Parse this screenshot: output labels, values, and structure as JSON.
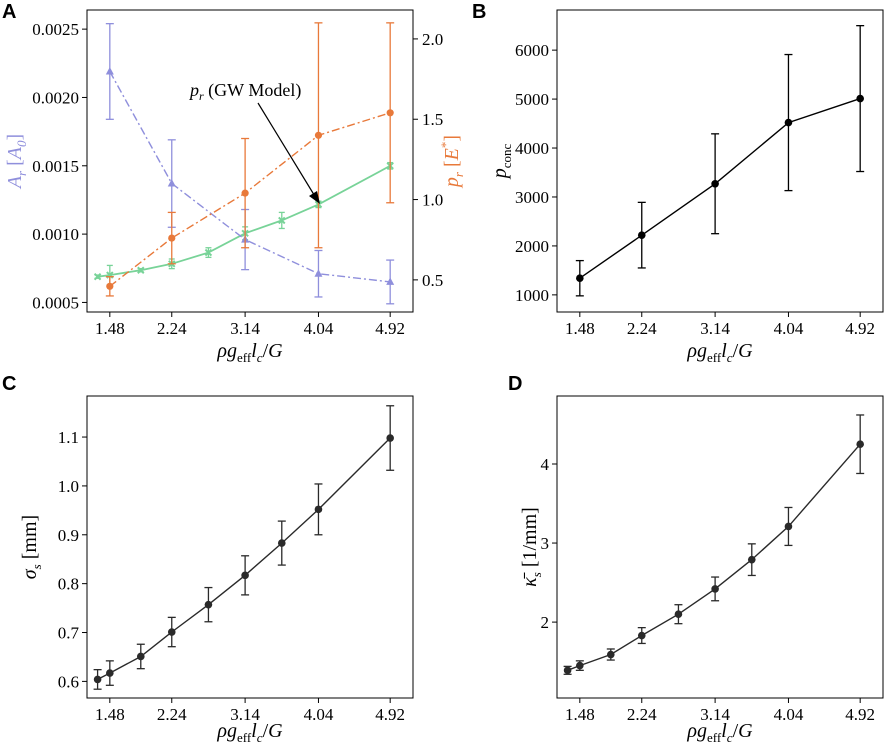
{
  "colors": {
    "area": "#8f8fdc",
    "pressure": "#e8793a",
    "gw": "#78d398",
    "black": "#000000"
  },
  "panels": {
    "A": {
      "label": "A"
    },
    "B": {
      "label": "B"
    },
    "C": {
      "label": "C"
    },
    "D": {
      "label": "D"
    }
  },
  "chart_data": [
    {
      "panel": "A",
      "type": "line",
      "xlabel": "ρg_eff l_c / G",
      "x_ticks": [
        "1.48",
        "2.24",
        "3.14",
        "4.04",
        "4.92"
      ],
      "xlim": [
        1.2,
        5.2
      ],
      "left_axis": {
        "label": "A_r [A_0]",
        "ylim": [
          0.00043,
          0.00264
        ],
        "ticks": [
          "0.0005",
          "0.0010",
          "0.0015",
          "0.0020",
          "0.0025"
        ]
      },
      "right_axis": {
        "label": "p_r [E*]",
        "ylim": [
          0.3,
          2.18
        ],
        "ticks": [
          "0.5",
          "1.0",
          "1.5",
          "2.0"
        ]
      },
      "annotation": "(GW Model)",
      "series": [
        {
          "name": "A_r",
          "axis": "left",
          "style": "dashdot-triangle",
          "x": [
            1.48,
            2.24,
            3.14,
            4.04,
            4.92
          ],
          "y": [
            0.00219,
            0.00137,
            0.00096,
            0.00071,
            0.00065
          ],
          "err": [
            0.00035,
            0.00032,
            0.00022,
            0.00017,
            0.00016
          ]
        },
        {
          "name": "p_r",
          "axis": "right",
          "style": "dashdot-circle",
          "x": [
            1.48,
            2.24,
            3.14,
            4.04,
            4.92
          ],
          "y": [
            0.46,
            0.76,
            1.04,
            1.4,
            1.54
          ],
          "err": [
            0.06,
            0.16,
            0.34,
            0.7,
            0.56
          ]
        },
        {
          "name": "p_r (GW Model)",
          "axis": "right",
          "style": "solid-x",
          "x": [
            1.33,
            1.48,
            1.86,
            2.24,
            2.69,
            3.14,
            3.59,
            4.04,
            4.92
          ],
          "y": [
            0.52,
            0.53,
            0.56,
            0.6,
            0.67,
            0.79,
            0.87,
            0.97,
            1.21
          ],
          "err": [
            0.01,
            0.06,
            0.01,
            0.03,
            0.03,
            0.04,
            0.05,
            0.02,
            0.02
          ]
        }
      ]
    },
    {
      "panel": "B",
      "type": "line",
      "xlabel": "ρg_eff l_c / G",
      "ylabel": "p_conc",
      "x_ticks": [
        "1.48",
        "2.24",
        "3.14",
        "4.04",
        "4.92"
      ],
      "y_ticks": [
        "1000",
        "2000",
        "3000",
        "4000",
        "5000",
        "6000"
      ],
      "xlim": [
        1.2,
        5.2
      ],
      "ylim": [
        650,
        6820
      ],
      "series": [
        {
          "name": "p_conc",
          "x": [
            1.48,
            2.24,
            3.14,
            4.04,
            4.92
          ],
          "y": [
            1340,
            2220,
            3270,
            4520,
            5010
          ],
          "err": [
            360,
            670,
            1020,
            1390,
            1490
          ]
        }
      ]
    },
    {
      "panel": "C",
      "type": "line",
      "xlabel": "ρg_eff l_c / G",
      "ylabel": "σ_s [mm]",
      "x_ticks": [
        "1.48",
        "2.24",
        "3.14",
        "4.04",
        "4.92"
      ],
      "y_ticks": [
        "0.6",
        "0.7",
        "0.8",
        "0.9",
        "1.0",
        "1.1"
      ],
      "xlim": [
        1.2,
        5.2
      ],
      "ylim": [
        0.566,
        1.184
      ],
      "series": [
        {
          "name": "σ_s",
          "x": [
            1.33,
            1.48,
            1.86,
            2.24,
            2.69,
            3.14,
            3.59,
            4.04,
            4.92
          ],
          "y": [
            0.604,
            0.617,
            0.651,
            0.701,
            0.757,
            0.817,
            0.883,
            0.952,
            1.098
          ],
          "err": [
            0.02,
            0.025,
            0.025,
            0.03,
            0.035,
            0.04,
            0.045,
            0.052,
            0.066
          ]
        }
      ]
    },
    {
      "panel": "D",
      "type": "line",
      "xlabel": "ρg_eff l_c / G",
      "ylabel": "κ̄_s [1/mm]",
      "x_ticks": [
        "1.48",
        "2.24",
        "3.14",
        "4.04",
        "4.92"
      ],
      "y_ticks": [
        "2",
        "3",
        "4"
      ],
      "xlim": [
        1.2,
        5.2
      ],
      "ylim": [
        1.04,
        4.86
      ],
      "series": [
        {
          "name": "κ̄_s",
          "x": [
            1.33,
            1.48,
            1.86,
            2.24,
            2.69,
            3.14,
            3.59,
            4.04,
            4.92
          ],
          "y": [
            1.39,
            1.45,
            1.59,
            1.83,
            2.1,
            2.42,
            2.79,
            3.21,
            4.25
          ],
          "err": [
            0.05,
            0.06,
            0.07,
            0.1,
            0.12,
            0.15,
            0.2,
            0.24,
            0.37
          ]
        }
      ]
    }
  ]
}
